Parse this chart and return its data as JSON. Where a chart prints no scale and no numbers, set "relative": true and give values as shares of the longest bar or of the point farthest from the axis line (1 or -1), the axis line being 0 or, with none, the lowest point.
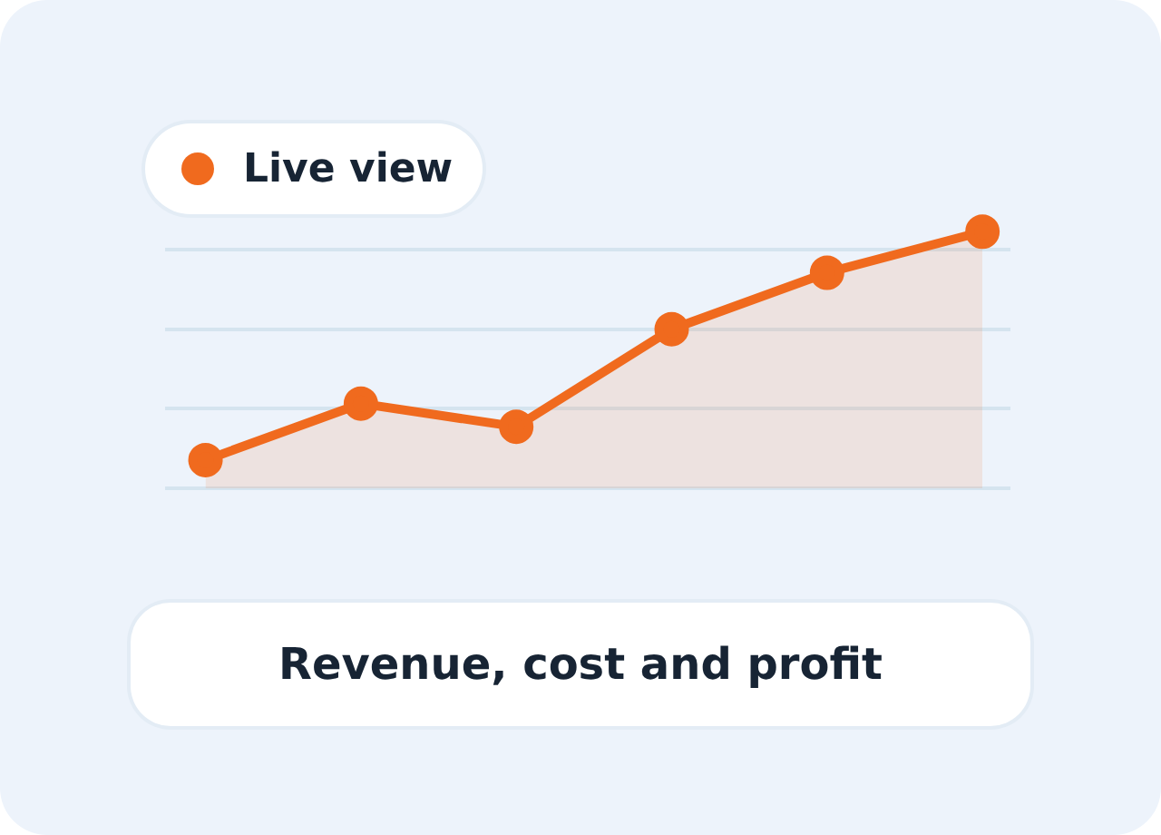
{
  "chart_data": {
    "type": "area",
    "title": "Revenue, cost and profit",
    "relative": true,
    "categories": [
      null,
      null,
      null,
      null,
      null,
      null
    ],
    "series": [
      {
        "name": "Live view",
        "color": "#f06a1e",
        "values": [
          0.11,
          0.33,
          0.24,
          0.62,
          0.84,
          1
        ]
      }
    ],
    "grid": "y",
    "legend": "top left",
    "marker": "circle",
    "line_style": "solid"
  }
}
